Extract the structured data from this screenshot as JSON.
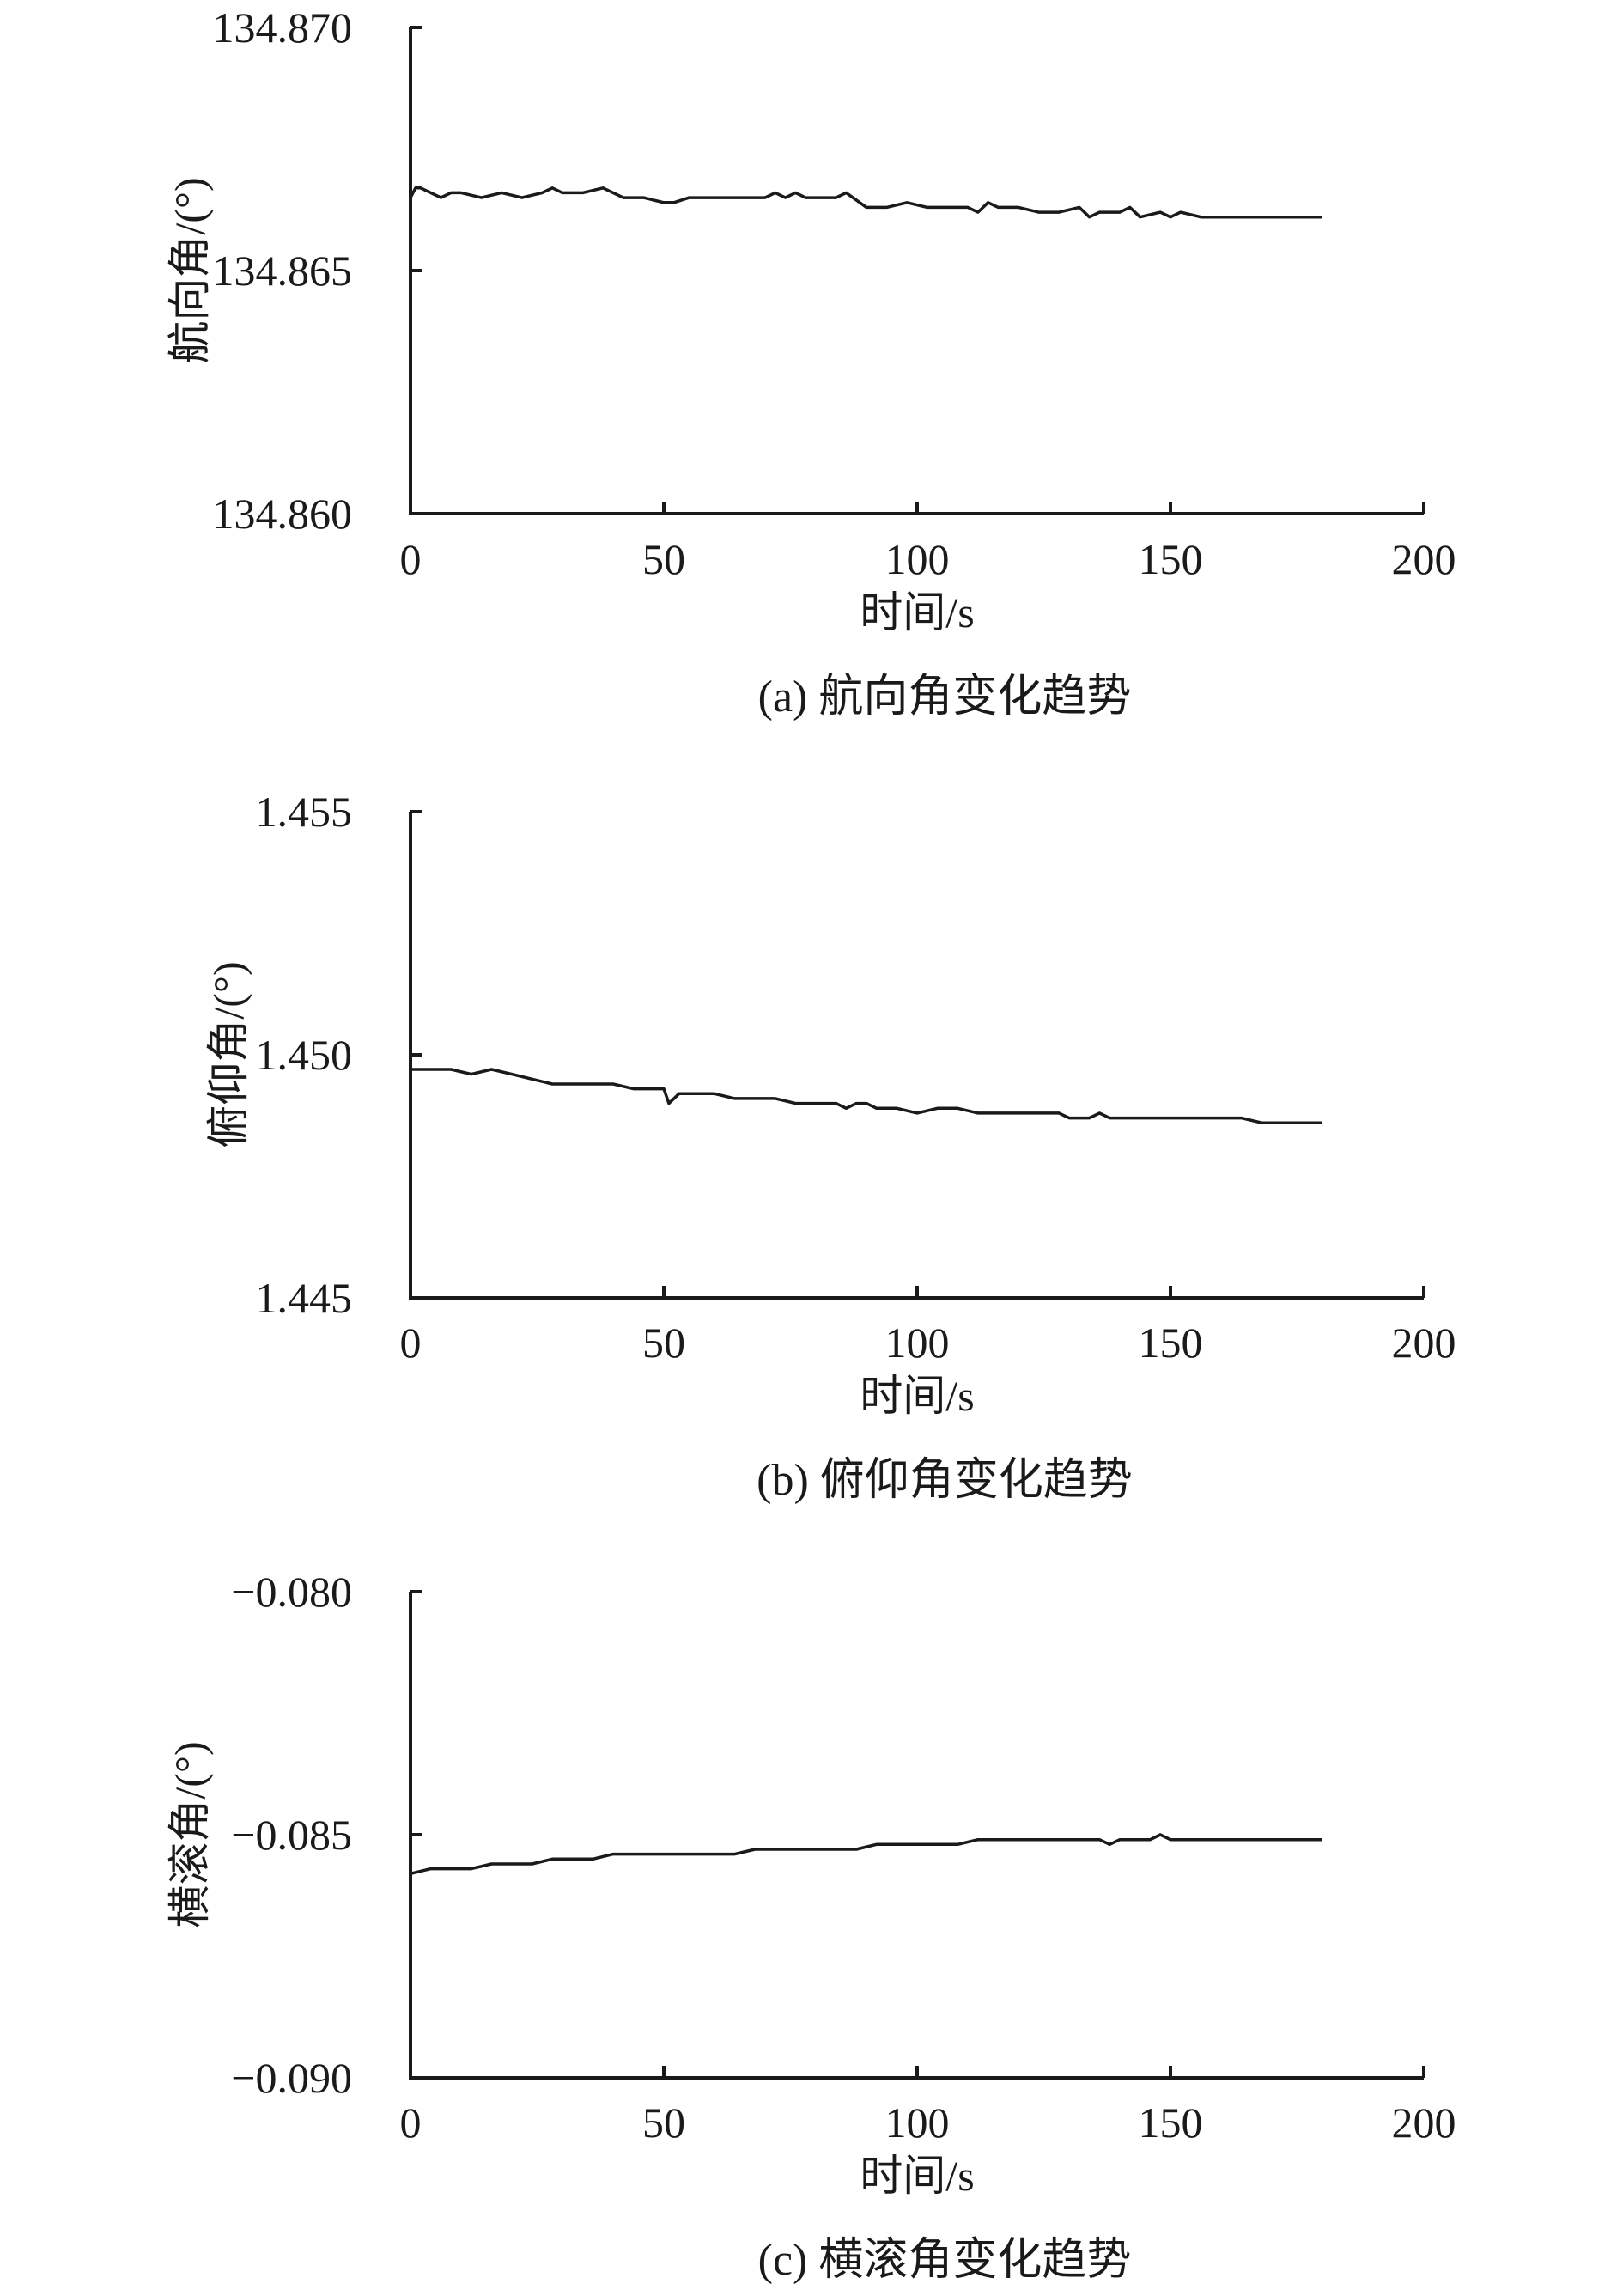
{
  "chart_data": [
    {
      "type": "line",
      "caption": "(a) 航向角变化趋势",
      "xlabel": "时间/s",
      "ylabel": "航向角/(°)",
      "xlim": [
        0,
        200
      ],
      "ylim": [
        134.86,
        134.87
      ],
      "x_ticks": [
        "0",
        "50",
        "100",
        "150",
        "200"
      ],
      "y_ticks": [
        "134.860",
        "134.865",
        "134.870"
      ],
      "grid": false,
      "legend": "none",
      "series": [
        {
          "x": [
            0,
            1,
            2,
            4,
            6,
            8,
            10,
            14,
            18,
            22,
            26,
            28,
            30,
            34,
            38,
            42,
            46,
            50,
            52,
            55,
            58,
            62,
            66,
            70,
            72,
            74,
            76,
            78,
            82,
            84,
            86,
            90,
            94,
            98,
            102,
            106,
            110,
            112,
            114,
            116,
            120,
            124,
            128,
            132,
            134,
            136,
            140,
            142,
            144,
            148,
            150,
            152,
            156,
            160,
            164,
            166,
            168,
            170,
            174,
            178,
            180
          ],
          "values": [
            134.8665,
            134.8667,
            134.8667,
            134.8666,
            134.8665,
            134.8666,
            134.8666,
            134.8665,
            134.8666,
            134.8665,
            134.8666,
            134.8667,
            134.8666,
            134.8666,
            134.8667,
            134.8665,
            134.8665,
            134.8664,
            134.8664,
            134.8665,
            134.8665,
            134.8665,
            134.8665,
            134.8665,
            134.8666,
            134.8665,
            134.8666,
            134.8665,
            134.8665,
            134.8665,
            134.8666,
            134.8663,
            134.8663,
            134.8664,
            134.8663,
            134.8663,
            134.8663,
            134.8662,
            134.8664,
            134.8663,
            134.8663,
            134.8662,
            134.8662,
            134.8663,
            134.8661,
            134.8662,
            134.8662,
            134.8663,
            134.8661,
            134.8662,
            134.8661,
            134.8662,
            134.8661,
            134.8661,
            134.8661,
            134.8661,
            134.8661,
            134.8661,
            134.8661,
            134.8661,
            134.8661
          ]
        }
      ]
    },
    {
      "type": "line",
      "caption": "(b) 俯仰角变化趋势",
      "xlabel": "时间/s",
      "ylabel": "俯仰角/(°)",
      "xlim": [
        0,
        200
      ],
      "ylim": [
        1.445,
        1.455
      ],
      "x_ticks": [
        "0",
        "50",
        "100",
        "150",
        "200"
      ],
      "y_ticks": [
        "1.445",
        "1.450",
        "1.455"
      ],
      "grid": false,
      "legend": "none",
      "series": [
        {
          "x": [
            0,
            4,
            8,
            12,
            16,
            20,
            24,
            28,
            32,
            36,
            40,
            44,
            48,
            50,
            51,
            53,
            56,
            60,
            64,
            68,
            72,
            76,
            80,
            84,
            86,
            88,
            90,
            92,
            96,
            100,
            104,
            108,
            112,
            116,
            120,
            124,
            128,
            130,
            134,
            136,
            138,
            140,
            144,
            148,
            152,
            156,
            160,
            164,
            168,
            172,
            176,
            180
          ],
          "values": [
            1.4497,
            1.4497,
            1.4497,
            1.4496,
            1.4497,
            1.4496,
            1.4495,
            1.4494,
            1.4494,
            1.4494,
            1.4494,
            1.4493,
            1.4493,
            1.4493,
            1.449,
            1.4492,
            1.4492,
            1.4492,
            1.4491,
            1.4491,
            1.4491,
            1.449,
            1.449,
            1.449,
            1.4489,
            1.449,
            1.449,
            1.4489,
            1.4489,
            1.4488,
            1.4489,
            1.4489,
            1.4488,
            1.4488,
            1.4488,
            1.4488,
            1.4488,
            1.4487,
            1.4487,
            1.4488,
            1.4487,
            1.4487,
            1.4487,
            1.4487,
            1.4487,
            1.4487,
            1.4487,
            1.4487,
            1.4486,
            1.4486,
            1.4486,
            1.4486
          ]
        }
      ]
    },
    {
      "type": "line",
      "caption": "(c) 横滚角变化趋势",
      "xlabel": "时间/s",
      "ylabel": "横滚角/(°)",
      "xlim": [
        0,
        200
      ],
      "ylim": [
        -0.09,
        -0.08
      ],
      "x_ticks": [
        "0",
        "50",
        "100",
        "150",
        "200"
      ],
      "y_ticks": [
        "−0.090",
        "−0.085",
        "−0.080"
      ],
      "grid": false,
      "legend": "none",
      "series": [
        {
          "x": [
            0,
            4,
            8,
            12,
            16,
            20,
            24,
            28,
            32,
            36,
            40,
            44,
            48,
            52,
            56,
            60,
            64,
            68,
            72,
            76,
            80,
            84,
            88,
            92,
            96,
            100,
            104,
            108,
            112,
            116,
            120,
            124,
            128,
            132,
            134,
            136,
            138,
            140,
            142,
            144,
            146,
            148,
            150,
            152,
            156,
            160,
            164,
            168,
            172,
            176,
            180
          ],
          "values": [
            -0.0858,
            -0.0857,
            -0.0857,
            -0.0857,
            -0.0856,
            -0.0856,
            -0.0856,
            -0.0855,
            -0.0855,
            -0.0855,
            -0.0854,
            -0.0854,
            -0.0854,
            -0.0854,
            -0.0854,
            -0.0854,
            -0.0854,
            -0.0853,
            -0.0853,
            -0.0853,
            -0.0853,
            -0.0853,
            -0.0853,
            -0.0852,
            -0.0852,
            -0.0852,
            -0.0852,
            -0.0852,
            -0.0851,
            -0.0851,
            -0.0851,
            -0.0851,
            -0.0851,
            -0.0851,
            -0.0851,
            -0.0851,
            -0.0852,
            -0.0851,
            -0.0851,
            -0.0851,
            -0.0851,
            -0.085,
            -0.0851,
            -0.0851,
            -0.0851,
            -0.0851,
            -0.0851,
            -0.0851,
            -0.0851,
            -0.0851,
            -0.0851
          ]
        }
      ]
    }
  ]
}
